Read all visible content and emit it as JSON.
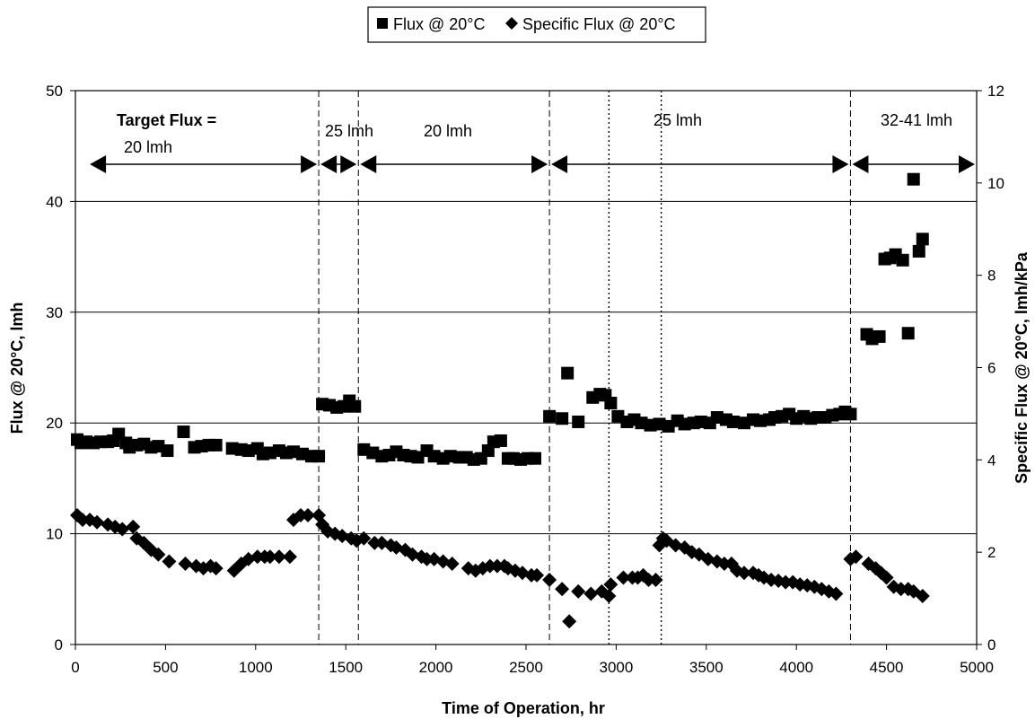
{
  "chart_data": {
    "type": "scatter",
    "xlabel": "Time of Operation, hr",
    "ylabel_left": "Flux @ 20°C, lmh",
    "ylabel_right": "Specific Flux @ 20°C, lmh/kPa",
    "xlim": [
      0,
      5000
    ],
    "ylim_left": [
      0,
      50
    ],
    "ylim_right": [
      0,
      12
    ],
    "x_ticks": [
      "0",
      "500",
      "1000",
      "1500",
      "2000",
      "2500",
      "3000",
      "3500",
      "4000",
      "4500",
      "5000"
    ],
    "y_left_ticks": [
      "0",
      "10",
      "20",
      "30",
      "40",
      "50"
    ],
    "y_right_ticks": [
      "0",
      "2",
      "4",
      "6",
      "8",
      "10",
      "12"
    ],
    "grid": "horizontal at left-axis major ticks",
    "legend": {
      "position": "top-center",
      "entries": [
        {
          "symbol": "■",
          "label": "Flux @ 20°C"
        },
        {
          "symbol": "◆",
          "label": "Specific Flux @ 20°C"
        }
      ]
    },
    "annotations": {
      "target_flux_label": "Target Flux =",
      "phases": [
        {
          "label": "20 lmh",
          "from": 70,
          "to": 1350
        },
        {
          "label": "25 lmh",
          "from": 1350,
          "to": 1570
        },
        {
          "label": "20 lmh",
          "from": 1570,
          "to": 2630
        },
        {
          "label": "25 lmh",
          "from": 2630,
          "to": 4300
        },
        {
          "label": "32-41 lmh",
          "from": 4300,
          "to": 5000
        }
      ],
      "vlines_dashed": [
        1350,
        1570,
        2630,
        4300
      ],
      "vlines_dotted": [
        2960,
        3250
      ]
    },
    "series": [
      {
        "name": "Flux @ 20°C",
        "axis": "left",
        "marker": "square",
        "x": [
          10,
          30,
          60,
          100,
          140,
          180,
          210,
          240,
          280,
          300,
          340,
          380,
          420,
          460,
          510,
          600,
          660,
          700,
          740,
          780,
          870,
          920,
          960,
          1010,
          1040,
          1080,
          1130,
          1170,
          1210,
          1260,
          1310,
          1350,
          1370,
          1410,
          1450,
          1490,
          1520,
          1550,
          1600,
          1650,
          1700,
          1740,
          1780,
          1820,
          1860,
          1900,
          1950,
          1990,
          2040,
          2080,
          2130,
          2170,
          2210,
          2250,
          2290,
          2320,
          2360,
          2400,
          2430,
          2470,
          2510,
          2550,
          2630,
          2700,
          2730,
          2790,
          2870,
          2910,
          2940,
          2970,
          3010,
          3060,
          3100,
          3140,
          3190,
          3240,
          3290,
          3340,
          3380,
          3430,
          3470,
          3520,
          3560,
          3610,
          3650,
          3710,
          3760,
          3800,
          3850,
          3880,
          3920,
          3960,
          4000,
          4040,
          4080,
          4120,
          4160,
          4200,
          4240,
          4270,
          4300,
          4390,
          4420,
          4460,
          4490,
          4520,
          4550,
          4590,
          4620,
          4650,
          4680,
          4700
        ],
        "y": [
          18.5,
          18.2,
          18.3,
          18.2,
          18.3,
          18.3,
          18.4,
          19.0,
          18.2,
          17.8,
          18.0,
          18.1,
          17.8,
          17.9,
          17.5,
          19.2,
          17.8,
          17.9,
          18.0,
          18.0,
          17.7,
          17.6,
          17.5,
          17.7,
          17.2,
          17.3,
          17.5,
          17.3,
          17.4,
          17.2,
          17.0,
          17.0,
          21.7,
          21.6,
          21.4,
          21.5,
          22.0,
          21.5,
          17.6,
          17.3,
          17.0,
          17.1,
          17.4,
          17.1,
          17.0,
          16.9,
          17.5,
          17.0,
          16.8,
          17.0,
          16.9,
          16.9,
          16.7,
          16.8,
          17.5,
          18.3,
          18.4,
          16.8,
          16.8,
          16.7,
          16.8,
          16.8,
          20.6,
          20.4,
          24.5,
          20.1,
          22.3,
          22.6,
          22.5,
          21.8,
          20.6,
          20.1,
          20.3,
          20.0,
          19.8,
          19.9,
          19.7,
          20.2,
          19.9,
          20.0,
          20.1,
          20.0,
          20.5,
          20.3,
          20.1,
          20.0,
          20.3,
          20.2,
          20.3,
          20.5,
          20.6,
          20.8,
          20.4,
          20.6,
          20.4,
          20.5,
          20.5,
          20.7,
          20.8,
          21.0,
          20.8,
          28.0,
          27.6,
          27.8,
          34.8,
          34.9,
          35.2,
          34.7,
          28.1,
          42.0,
          35.5,
          36.6
        ]
      },
      {
        "name": "Specific Flux @ 20°C",
        "axis": "right",
        "marker": "diamond",
        "x": [
          10,
          40,
          80,
          120,
          180,
          220,
          260,
          320,
          340,
          380,
          420,
          460,
          520,
          610,
          670,
          710,
          750,
          780,
          880,
          920,
          960,
          1010,
          1050,
          1080,
          1130,
          1190,
          1210,
          1250,
          1290,
          1350,
          1370,
          1400,
          1440,
          1480,
          1530,
          1560,
          1600,
          1660,
          1700,
          1750,
          1780,
          1830,
          1870,
          1920,
          1950,
          1990,
          2040,
          2090,
          2180,
          2220,
          2260,
          2300,
          2340,
          2380,
          2400,
          2440,
          2480,
          2530,
          2560,
          2630,
          2700,
          2740,
          2790,
          2860,
          2920,
          2960,
          2970,
          3040,
          3090,
          3120,
          3150,
          3180,
          3220,
          3240,
          3260,
          3280,
          3330,
          3380,
          3420,
          3460,
          3510,
          3560,
          3600,
          3640,
          3670,
          3710,
          3760,
          3790,
          3820,
          3860,
          3900,
          3940,
          3980,
          4020,
          4060,
          4100,
          4140,
          4180,
          4220,
          4300,
          4330,
          4400,
          4440,
          4470,
          4500,
          4540,
          4580,
          4620,
          4650,
          4700
        ],
        "y": [
          2.8,
          2.7,
          2.7,
          2.65,
          2.6,
          2.55,
          2.5,
          2.55,
          2.3,
          2.2,
          2.05,
          1.95,
          1.8,
          1.75,
          1.7,
          1.65,
          1.7,
          1.65,
          1.6,
          1.75,
          1.85,
          1.9,
          1.9,
          1.9,
          1.9,
          1.9,
          2.7,
          2.8,
          2.8,
          2.8,
          2.6,
          2.45,
          2.4,
          2.35,
          2.3,
          2.25,
          2.3,
          2.2,
          2.2,
          2.15,
          2.1,
          2.05,
          1.95,
          1.9,
          1.85,
          1.85,
          1.8,
          1.75,
          1.65,
          1.6,
          1.65,
          1.7,
          1.7,
          1.7,
          1.65,
          1.6,
          1.55,
          1.5,
          1.5,
          1.4,
          1.2,
          0.5,
          1.15,
          1.1,
          1.15,
          1.05,
          1.3,
          1.45,
          1.45,
          1.45,
          1.5,
          1.4,
          1.4,
          2.15,
          2.3,
          2.25,
          2.15,
          2.1,
          2.0,
          1.95,
          1.85,
          1.8,
          1.75,
          1.75,
          1.6,
          1.55,
          1.55,
          1.5,
          1.45,
          1.4,
          1.38,
          1.35,
          1.35,
          1.3,
          1.28,
          1.25,
          1.2,
          1.15,
          1.1,
          1.85,
          1.9,
          1.75,
          1.65,
          1.55,
          1.45,
          1.25,
          1.2,
          1.2,
          1.15,
          1.05
        ]
      }
    ]
  }
}
